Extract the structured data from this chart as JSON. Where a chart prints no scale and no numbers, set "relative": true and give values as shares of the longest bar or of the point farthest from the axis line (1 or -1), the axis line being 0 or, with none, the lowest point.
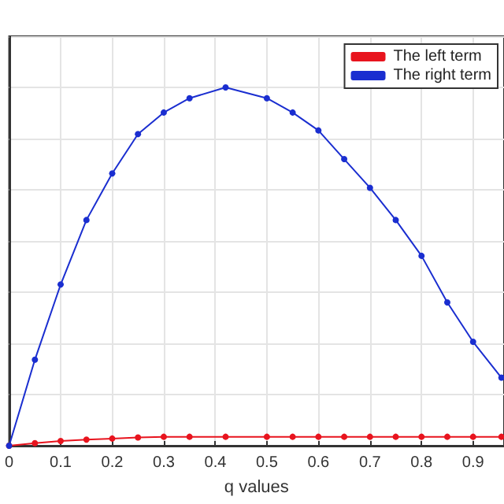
{
  "chart_data": {
    "type": "line",
    "xlabel": "q values",
    "relative": true,
    "xlim": [
      0,
      0.96
    ],
    "xticks": [
      0,
      0.1,
      0.2,
      0.3,
      0.4,
      0.5,
      0.6,
      0.7,
      0.8,
      0.9
    ],
    "grid": true,
    "legend": "top right",
    "marker": "circle",
    "line_style": "solid",
    "x": [
      0,
      0.05,
      0.1,
      0.15,
      0.2,
      0.25,
      0.3,
      0.35,
      0.42,
      0.5,
      0.55,
      0.6,
      0.65,
      0.7,
      0.75,
      0.8,
      0.85,
      0.9,
      0.955
    ],
    "series": [
      {
        "name": "The left term",
        "color": "#e8141e",
        "values": [
          0,
          0.007,
          0.013,
          0.017,
          0.02,
          0.023,
          0.025,
          0.025,
          0.025,
          0.025,
          0.025,
          0.025,
          0.025,
          0.025,
          0.025,
          0.025,
          0.025,
          0.025,
          0.025
        ]
      },
      {
        "name": "The right term",
        "color": "#1a2ed0",
        "values": [
          0,
          0.24,
          0.45,
          0.63,
          0.76,
          0.87,
          0.93,
          0.97,
          1,
          0.97,
          0.93,
          0.88,
          0.8,
          0.72,
          0.63,
          0.53,
          0.4,
          0.29,
          0.19
        ]
      }
    ]
  }
}
